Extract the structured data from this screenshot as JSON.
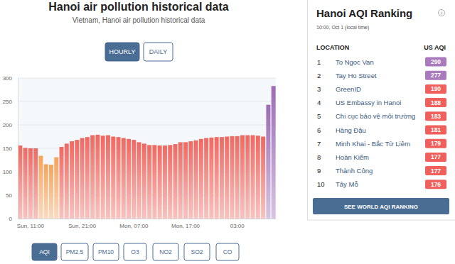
{
  "chart_data": {
    "type": "bar",
    "title": "Hanoi air pollution historical data",
    "subtitle": "Vietnam, Hanoi air pollution historical data",
    "categories": [
      null,
      null,
      "Sun, 11:00",
      null,
      null,
      null,
      null,
      null,
      null,
      null,
      null,
      null,
      "Sun, 21:00",
      null,
      null,
      null,
      null,
      null,
      null,
      null,
      null,
      null,
      "Mon, 07:00",
      null,
      null,
      null,
      null,
      null,
      null,
      null,
      null,
      null,
      "Mon, 17:00",
      null,
      null,
      null,
      null,
      null,
      null,
      null,
      null,
      null,
      "03:00",
      null,
      null,
      null,
      null,
      null,
      null,
      null
    ],
    "values": [
      156,
      151,
      150,
      150,
      134,
      116,
      115,
      131,
      153,
      160,
      165,
      168,
      172,
      174,
      178,
      179,
      177,
      178,
      175,
      174,
      172,
      170,
      168,
      163,
      160,
      157,
      157,
      156,
      156,
      157,
      159,
      163,
      163,
      165,
      167,
      170,
      172,
      173,
      174,
      174,
      175,
      176,
      176,
      178,
      178,
      178,
      177,
      175,
      243,
      283
    ],
    "colors": [
      "#f06860",
      "#f06860",
      "#f06860",
      "#f06860",
      "#f4a45c",
      "#f4a45c",
      "#f4a45c",
      "#f4a45c",
      "#f06860",
      "#f06860",
      "#f06860",
      "#f06860",
      "#f06860",
      "#f06860",
      "#f06860",
      "#f06860",
      "#f06860",
      "#f06860",
      "#f06860",
      "#f06860",
      "#f06860",
      "#f06860",
      "#f06860",
      "#f06860",
      "#f06860",
      "#f06860",
      "#f06860",
      "#f06860",
      "#f06860",
      "#f06860",
      "#f06860",
      "#f06860",
      "#f06860",
      "#f06860",
      "#f06860",
      "#f06860",
      "#f06860",
      "#f06860",
      "#f06860",
      "#f06860",
      "#f06860",
      "#f06860",
      "#f06860",
      "#f06860",
      "#f06860",
      "#f06860",
      "#f06860",
      "#f06860",
      "#9d6bb5",
      "#9d6bb5"
    ],
    "ylim": [
      0,
      300
    ],
    "yticks": [
      0,
      50,
      100,
      150,
      200,
      250,
      300
    ],
    "grid": true
  },
  "page": {
    "view_buttons": [
      "HOURLY",
      "DAILY"
    ],
    "pollutant_buttons": [
      "AQI",
      "PM2.5",
      "PM10",
      "O3",
      "NO2",
      "SO2",
      "CO"
    ],
    "ranking": {
      "title": "Hanoi AQI Ranking",
      "time": "10:00, Oct 1 (local time)",
      "headers": [
        "LOCATION",
        "US AQI"
      ],
      "rows": [
        {
          "rank": 1,
          "location": "To Ngoc Van",
          "aqi": 290,
          "color": "#a97abc"
        },
        {
          "rank": 2,
          "location": "Tay Ho Street",
          "aqi": 277,
          "color": "#a97abc"
        },
        {
          "rank": 3,
          "location": "GreenID",
          "aqi": 190,
          "color": "#f0605d"
        },
        {
          "rank": 4,
          "location": "US Embassy in Hanoi",
          "aqi": 188,
          "color": "#f0605d"
        },
        {
          "rank": 5,
          "location": "Chi cục bảo vệ môi trường",
          "aqi": 183,
          "color": "#f0605d"
        },
        {
          "rank": 6,
          "location": "Hàng Đậu",
          "aqi": 181,
          "color": "#f0605d"
        },
        {
          "rank": 7,
          "location": "Minh Khai - Bắc Từ Liêm",
          "aqi": 179,
          "color": "#f0605d"
        },
        {
          "rank": 8,
          "location": "Hoàn Kiếm",
          "aqi": 177,
          "color": "#f0605d"
        },
        {
          "rank": 9,
          "location": "Thành Công",
          "aqi": 177,
          "color": "#f0605d"
        },
        {
          "rank": 10,
          "location": "Tây Mỗ",
          "aqi": 176,
          "color": "#f0605d"
        }
      ],
      "button": "SEE WORLD AQI RANKING"
    }
  }
}
